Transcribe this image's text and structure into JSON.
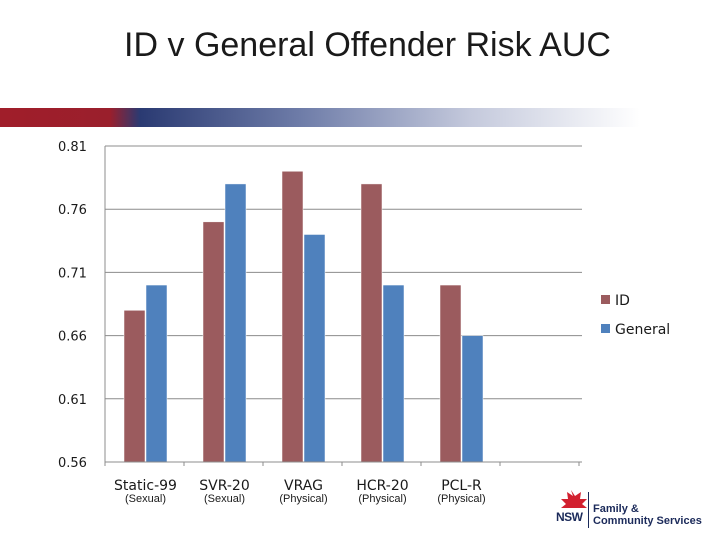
{
  "title": "ID v General Offender Risk AUC",
  "colors": {
    "id": "#9b5b5e",
    "general": "#4f81bd",
    "band_red": "#a01e2a",
    "band_blue": "#2a3a72",
    "logo_red": "#d2202f",
    "logo_navy": "#1b2a5a"
  },
  "logo": {
    "name_line1": "Family &",
    "name_line2": "Community Services",
    "nsw": "NSW"
  },
  "chart_data": {
    "type": "bar",
    "title": "",
    "categories": [
      "Static-99",
      "SVR-20",
      "VRAG",
      "HCR-20",
      "PCL-R"
    ],
    "subcategories": [
      "(Sexual)",
      "(Sexual)",
      "(Physical)",
      "(Physical)",
      "(Physical)"
    ],
    "series": [
      {
        "name": "ID",
        "values": [
          0.68,
          0.75,
          0.79,
          0.78,
          0.7
        ]
      },
      {
        "name": "General",
        "values": [
          0.7,
          0.78,
          0.74,
          0.7,
          0.66
        ]
      }
    ],
    "ylim": [
      0.56,
      0.81
    ],
    "yticks": [
      "0.56",
      "0.61",
      "0.66",
      "0.71",
      "0.76",
      "0.81"
    ],
    "xlabel": "",
    "ylabel": "",
    "grid": true,
    "legend": "right"
  }
}
